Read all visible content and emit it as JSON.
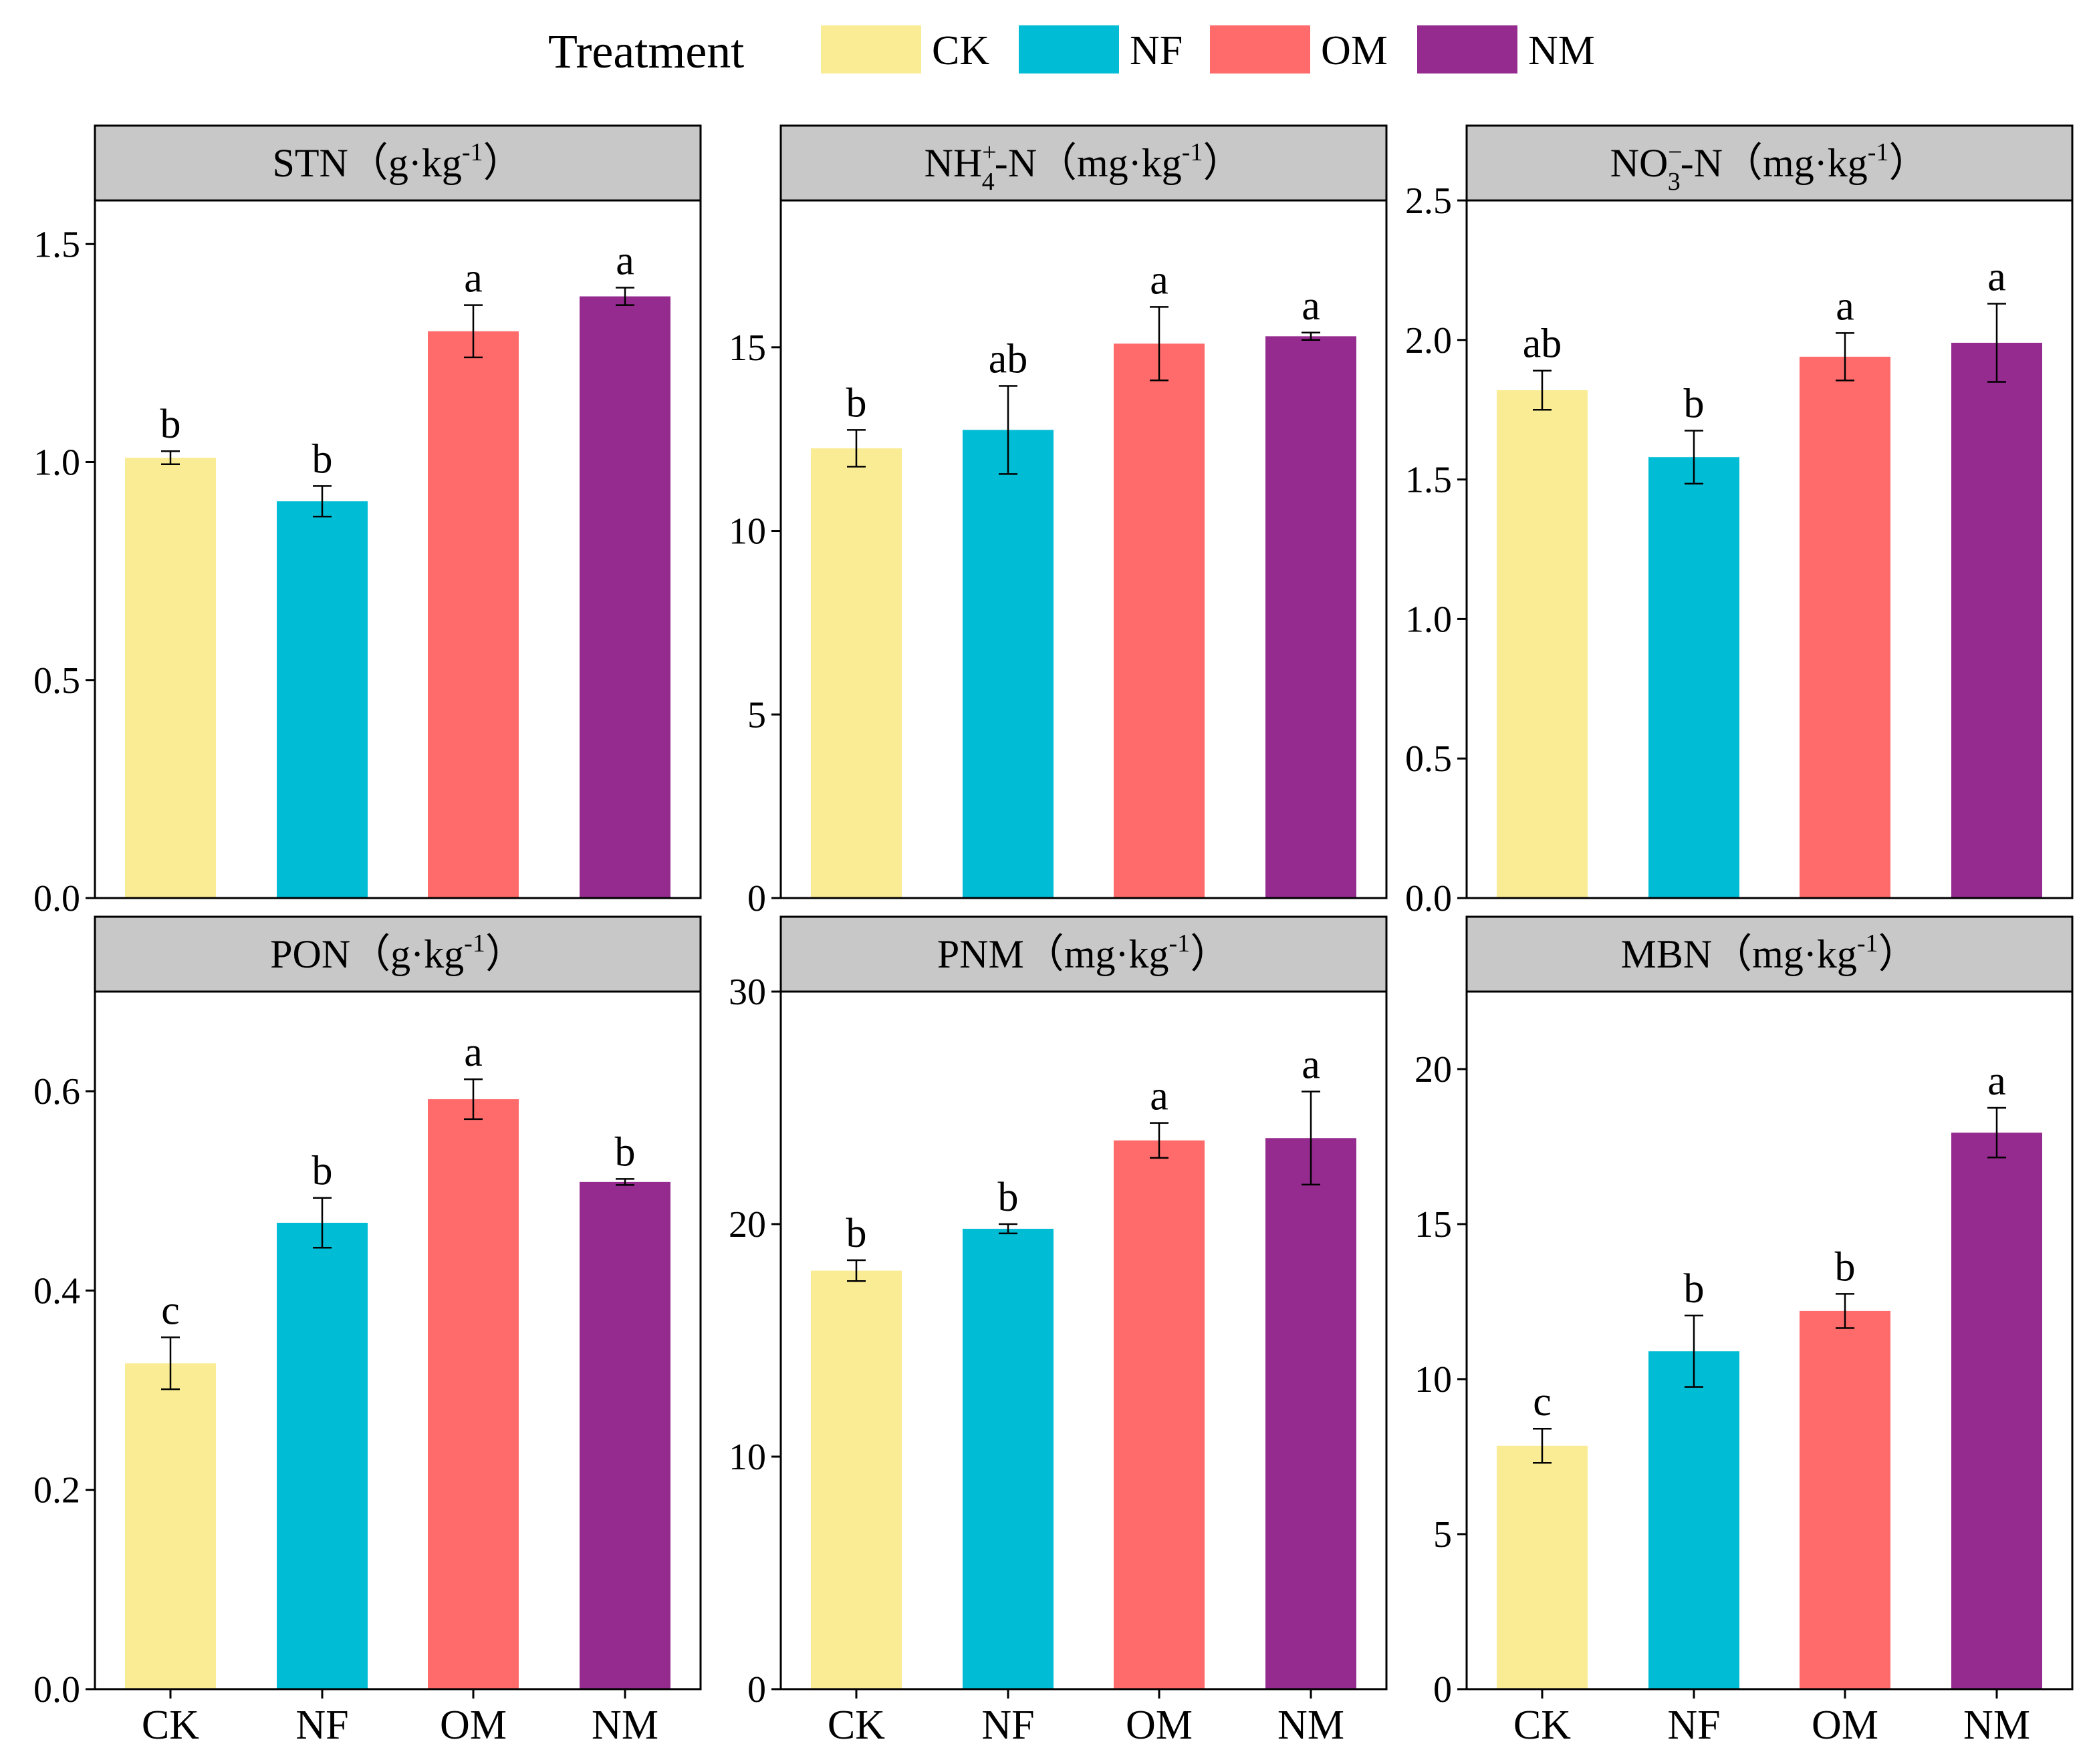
{
  "legend": {
    "title": "Treatment",
    "items": [
      {
        "label": "CK",
        "color": "#FAEC94"
      },
      {
        "label": "NF",
        "color": "#00BCD4"
      },
      {
        "label": "OM",
        "color": "#FF6B6B"
      },
      {
        "label": "NM",
        "color": "#952B8F"
      }
    ]
  },
  "chart_data": [
    {
      "type": "bar",
      "title": {
        "main": "STN",
        "unit_open": "（g·kg",
        "sup": "-1",
        "unit_close": "）"
      },
      "categories": [
        "CK",
        "NF",
        "OM",
        "NM"
      ],
      "values": [
        1.01,
        0.91,
        1.3,
        1.38
      ],
      "errors": [
        0.015,
        0.035,
        0.06,
        0.02
      ],
      "significance": [
        "b",
        "b",
        "a",
        "a"
      ],
      "ylim": [
        0,
        1.6
      ],
      "yticks": [
        0.0,
        0.5,
        1.0,
        1.5
      ],
      "ytick_labels": [
        "0.0",
        "0.5",
        "1.0",
        "1.5"
      ],
      "show_x_labels": false
    },
    {
      "type": "bar",
      "title": {
        "main": "NH",
        "sup": "+",
        "sub": "4",
        "rest": "-N",
        "unit_open": "（mg·kg",
        "unit_sup": "-1",
        "unit_close": "）"
      },
      "categories": [
        "CK",
        "NF",
        "OM",
        "NM"
      ],
      "values": [
        12.25,
        12.75,
        15.1,
        15.3
      ],
      "errors": [
        0.5,
        1.2,
        1.0,
        0.1
      ],
      "significance": [
        "b",
        "ab",
        "a",
        "a"
      ],
      "ylim": [
        0,
        19
      ],
      "yticks": [
        0,
        5,
        10,
        15
      ],
      "ytick_labels": [
        "0",
        "5",
        "10",
        "15"
      ],
      "show_x_labels": false
    },
    {
      "type": "bar",
      "title": {
        "main": "NO",
        "sup": "−",
        "sub": "3",
        "rest": "-N",
        "unit_open": "（mg·kg",
        "unit_sup": "-1",
        "unit_close": "）"
      },
      "categories": [
        "CK",
        "NF",
        "OM",
        "NM"
      ],
      "values": [
        1.82,
        1.58,
        1.94,
        1.99
      ],
      "errors": [
        0.07,
        0.095,
        0.085,
        0.14
      ],
      "significance": [
        "ab",
        "b",
        "a",
        "a"
      ],
      "ylim": [
        0,
        2.5
      ],
      "yticks": [
        0.0,
        0.5,
        1.0,
        1.5,
        2.0,
        2.5
      ],
      "ytick_labels": [
        "0.0",
        "0.5",
        "1.0",
        "1.5",
        "2.0",
        "2.5"
      ],
      "show_x_labels": false
    },
    {
      "type": "bar",
      "title": {
        "main": "PON",
        "unit_open": "（g·kg",
        "sup": "-1",
        "unit_close": "）"
      },
      "categories": [
        "CK",
        "NF",
        "OM",
        "NM"
      ],
      "values": [
        0.327,
        0.468,
        0.592,
        0.509
      ],
      "errors": [
        0.026,
        0.025,
        0.02,
        0.003
      ],
      "significance": [
        "c",
        "b",
        "a",
        "b"
      ],
      "ylim": [
        0,
        0.7
      ],
      "yticks": [
        0.0,
        0.2,
        0.4,
        0.6
      ],
      "ytick_labels": [
        "0.0",
        "0.2",
        "0.4",
        "0.6"
      ],
      "show_x_labels": true
    },
    {
      "type": "bar",
      "title": {
        "main": "PNM",
        "unit_open": "（mg·kg",
        "sup": "-1",
        "unit_close": "）"
      },
      "categories": [
        "CK",
        "NF",
        "OM",
        "NM"
      ],
      "values": [
        18.0,
        19.8,
        23.6,
        23.7
      ],
      "errors": [
        0.45,
        0.2,
        0.75,
        2.0
      ],
      "significance": [
        "b",
        "b",
        "a",
        "a"
      ],
      "ylim": [
        0,
        30
      ],
      "yticks": [
        0,
        10,
        20,
        30
      ],
      "ytick_labels": [
        "0",
        "10",
        "20",
        "30"
      ],
      "show_x_labels": true
    },
    {
      "type": "bar",
      "title": {
        "main": "MBN",
        "unit_open": "（mg·kg",
        "sup": "-1",
        "unit_close": "）"
      },
      "categories": [
        "CK",
        "NF",
        "OM",
        "NM"
      ],
      "values": [
        7.85,
        10.9,
        12.2,
        17.95
      ],
      "errors": [
        0.55,
        1.15,
        0.55,
        0.8
      ],
      "significance": [
        "c",
        "b",
        "b",
        "a"
      ],
      "ylim": [
        0,
        22.5
      ],
      "yticks": [
        0,
        5,
        10,
        15,
        20
      ],
      "ytick_labels": [
        "0",
        "5",
        "10",
        "15",
        "20"
      ],
      "show_x_labels": true
    }
  ]
}
